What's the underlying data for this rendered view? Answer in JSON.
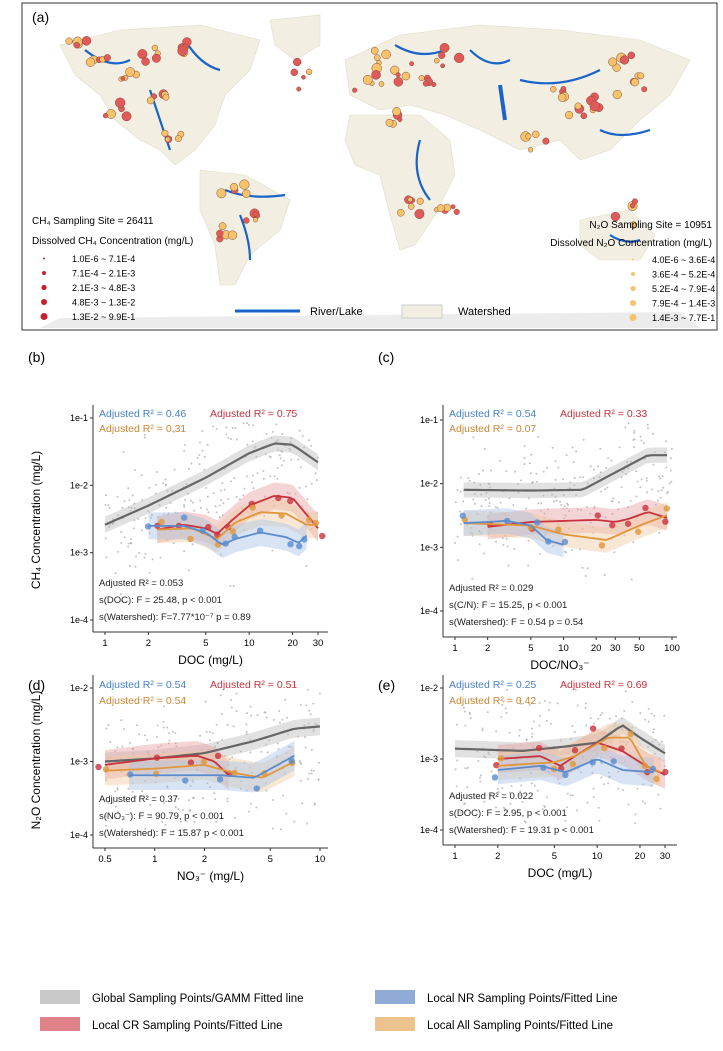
{
  "map": {
    "panel_label": "(a)",
    "ch4_site_count": "CH₄ Sampling Site = 26411",
    "ch4_legend_title": "Dissolved CH₄ Concentration (mg/L)",
    "ch4_classes": [
      "1.0E-6 ~ 7.1E-4",
      "7.1E-4 ~ 2.1E-3",
      "2.1E-3 ~ 4.8E-3",
      "4.8E-3 ~ 1.3E-2",
      "1.3E-2 ~ 9.9E-1"
    ],
    "n2o_site_count": "N₂O Sampling Site = 10951",
    "n2o_legend_title": "Dissolved N₂O Concentration (mg/L)",
    "n2o_classes": [
      "4.0E-6 ~ 3.6E-4",
      "3.6E-4 ~ 5.2E-4",
      "5.2E-4 ~ 7.9E-4",
      "7.9E-4 ~ 1.4E-3",
      "1.4E-3 ~ 7.7E-1"
    ],
    "river_label": "River/Lake",
    "watershed_label": "Watershed",
    "colors": {
      "ch4": "#e05a5a",
      "n2o": "#f5c36b",
      "river": "#1a63c9",
      "land": "#f2efe2",
      "sea": "#f0f0f0"
    }
  },
  "legend": {
    "items": [
      {
        "label": "Global Sampling Points/GAMM Fitted line",
        "color": "#c8c8c8"
      },
      {
        "label": "Local NR Sampling Points/Fitted Line",
        "color": "#90acd6"
      },
      {
        "label": "Local CR Sampling Points/Fitted Line",
        "color": "#e0828a"
      },
      {
        "label": "Local All Sampling Points/Fitted Line",
        "color": "#ecc28e"
      }
    ]
  },
  "chart_data": [
    {
      "panel": "(b)",
      "type": "scatter+line",
      "xlabel": "DOC (mg/L)",
      "ylabel": "CH₄ Concentration (mg/L)",
      "xscale": "log",
      "yscale": "log",
      "xlim": [
        1,
        30
      ],
      "ylim": [
        0.0001,
        0.1
      ],
      "xticks": [
        1,
        2,
        5,
        10,
        20,
        30
      ],
      "xtick_labels": [
        "1",
        "2",
        "5",
        "10",
        "20",
        "30"
      ],
      "yticks": [
        0.0001,
        0.001,
        0.01,
        0.1
      ],
      "ytick_labels": [
        "1e-4",
        "1e-3",
        "1e-2",
        "1e-1"
      ],
      "r2_labels": {
        "nr": "Adjusted R² = 0.46",
        "cr": "Adjusted R² = 0.75",
        "all": "Adjusted R² = 0.31"
      },
      "stats": [
        "Adjusted R² = 0.053",
        "s(DOC): F = 25.48, p < 0.001",
        "s(Watershed): F=7.77*10⁻⁷ p = 0.89"
      ],
      "series": [
        {
          "name": "Global",
          "color": "#666666",
          "x": [
            1,
            2,
            5,
            10,
            15,
            20,
            30
          ],
          "y": [
            0.0026,
            0.005,
            0.013,
            0.03,
            0.042,
            0.04,
            0.022
          ]
        },
        {
          "name": "CR",
          "color": "#c8323c",
          "x": [
            2.3,
            3.5,
            5,
            6,
            7,
            10,
            15,
            20,
            30
          ],
          "y": [
            0.0022,
            0.0026,
            0.0023,
            0.0019,
            0.0026,
            0.005,
            0.007,
            0.0065,
            0.0023
          ]
        },
        {
          "name": "All",
          "color": "#e0963c",
          "x": [
            2.3,
            4,
            6,
            8,
            12,
            18,
            25,
            30
          ],
          "y": [
            0.0022,
            0.0023,
            0.0016,
            0.0028,
            0.004,
            0.0038,
            0.0026,
            0.0026
          ]
        },
        {
          "name": "NR",
          "color": "#5a8ccd",
          "x": [
            2,
            3.5,
            5,
            6.5,
            8,
            12,
            18,
            22,
            25
          ],
          "y": [
            0.0025,
            0.0025,
            0.002,
            0.0013,
            0.0016,
            0.002,
            0.0017,
            0.0014,
            0.0018
          ]
        }
      ]
    },
    {
      "panel": "(c)",
      "type": "scatter+line",
      "xlabel": "DOC/NO₃⁻",
      "ylabel": "",
      "xscale": "log",
      "yscale": "log",
      "xlim": [
        1,
        100
      ],
      "ylim": [
        0.0001,
        0.1
      ],
      "xticks": [
        1,
        2,
        5,
        10,
        20,
        30,
        50,
        100
      ],
      "xtick_labels": [
        "1",
        "2",
        "5",
        "10",
        "20",
        "30",
        "50",
        "100"
      ],
      "yticks": [
        0.0001,
        0.001,
        0.01,
        0.1
      ],
      "ytick_labels": [
        "1e-4",
        "1e-3",
        "1e-2",
        "1e-1"
      ],
      "r2_labels": {
        "nr": "Adjusted R² = 0.54",
        "cr": "Adjusted R² = 0.33",
        "all": "Adjusted R² = 0.07"
      },
      "stats": [
        "Adjusted R² = 0.029",
        "s(C/N): F = 15.25, p < 0.001",
        "s(Watershed): F = 0.54 p = 0.54"
      ],
      "series": [
        {
          "name": "Global",
          "color": "#666666",
          "x": [
            1.2,
            5,
            15,
            30,
            60,
            90
          ],
          "y": [
            0.008,
            0.0078,
            0.008,
            0.015,
            0.028,
            0.028
          ]
        },
        {
          "name": "CR",
          "color": "#c8323c",
          "x": [
            2,
            5,
            20,
            30,
            40,
            60,
            90
          ],
          "y": [
            0.0021,
            0.0025,
            0.0027,
            0.0025,
            0.0028,
            0.0036,
            0.0029
          ]
        },
        {
          "name": "All",
          "color": "#e0963c",
          "x": [
            1.2,
            5,
            10,
            25,
            50,
            90
          ],
          "y": [
            0.0024,
            0.0022,
            0.0016,
            0.0013,
            0.0022,
            0.0032
          ]
        },
        {
          "name": "NR",
          "color": "#5a8ccd",
          "x": [
            1.2,
            3,
            5,
            7,
            10
          ],
          "y": [
            0.0024,
            0.0026,
            0.0022,
            0.0013,
            0.0011
          ]
        }
      ]
    },
    {
      "panel": "(d)",
      "type": "scatter+line",
      "xlabel": "NO₃⁻ (mg/L)",
      "ylabel": "N₂O Concentration (mg/L)",
      "xscale": "log",
      "yscale": "log",
      "xlim": [
        0.5,
        10
      ],
      "ylim": [
        0.0001,
        0.01
      ],
      "xticks": [
        0.5,
        1,
        2,
        5,
        10
      ],
      "xtick_labels": [
        "0.5",
        "1",
        "2",
        "5",
        "10"
      ],
      "yticks": [
        0.0001,
        0.001,
        0.01
      ],
      "ytick_labels": [
        "1e-4",
        "1e-3",
        "1e-2"
      ],
      "r2_labels": {
        "nr": "Adjusted R² = 0.54",
        "cr": "Adjusted R² = 0.51",
        "all": "Adjusted R² = 0.54"
      },
      "stats": [
        "Adjusted R² = 0.37",
        "s(NO₃⁻): F = 90.79, p < 0.001",
        "s(Watershed): F = 15.87 p < 0.001"
      ],
      "series": [
        {
          "name": "Global",
          "color": "#666666",
          "x": [
            0.5,
            1,
            2,
            4,
            7,
            10
          ],
          "y": [
            0.001,
            0.0011,
            0.0013,
            0.0019,
            0.0028,
            0.003
          ]
        },
        {
          "name": "CR",
          "color": "#c8323c",
          "x": [
            0.5,
            1,
            1.8,
            2.3,
            2.8
          ],
          "y": [
            0.0009,
            0.0011,
            0.0012,
            0.001,
            0.00065
          ]
        },
        {
          "name": "All",
          "color": "#e0963c",
          "x": [
            0.5,
            1,
            2,
            3,
            4.5,
            7
          ],
          "y": [
            0.00075,
            0.0008,
            0.0009,
            0.0007,
            0.0006,
            0.001
          ]
        },
        {
          "name": "NR",
          "color": "#5a8ccd",
          "x": [
            0.7,
            1.5,
            2.5,
            4,
            7
          ],
          "y": [
            0.00065,
            0.00065,
            0.00065,
            0.0006,
            0.0012
          ]
        }
      ]
    },
    {
      "panel": "(e)",
      "type": "scatter+line",
      "xlabel": "DOC (mg/L)",
      "ylabel": "",
      "xscale": "log",
      "yscale": "log",
      "xlim": [
        1,
        30
      ],
      "ylim": [
        0.0001,
        0.01
      ],
      "xticks": [
        1,
        2,
        5,
        10,
        20,
        30
      ],
      "xtick_labels": [
        "1",
        "2",
        "5",
        "10",
        "20",
        "30"
      ],
      "yticks": [
        0.0001,
        0.001,
        0.01
      ],
      "ytick_labels": [
        "1e-4",
        "1e-3",
        "1e-2"
      ],
      "r2_labels": {
        "nr": "Adjusted R² = 0.25",
        "cr": "Adjusted R² = 0.69",
        "all": "Adjusted R² = 0.42"
      },
      "stats": [
        "Adjusted R² = 0.022",
        "s(DOC): F = 2.95, p < 0.001",
        "s(Watershed): F = 19.31 p < 0.001"
      ],
      "series": [
        {
          "name": "Global",
          "color": "#666666",
          "x": [
            1,
            3,
            6,
            10,
            15,
            20,
            30
          ],
          "y": [
            0.0014,
            0.0013,
            0.0015,
            0.0017,
            0.003,
            0.002,
            0.0012
          ]
        },
        {
          "name": "CR",
          "color": "#c8323c",
          "x": [
            2,
            4,
            5.5,
            7,
            10,
            15,
            22,
            30
          ],
          "y": [
            0.001,
            0.0011,
            0.0008,
            0.0011,
            0.0017,
            0.0013,
            0.0008,
            0.0006
          ]
        },
        {
          "name": "All",
          "color": "#e0963c",
          "x": [
            2,
            5,
            7,
            12,
            17,
            22,
            28
          ],
          "y": [
            0.0008,
            0.0009,
            0.0011,
            0.002,
            0.002,
            0.0008,
            0.00065
          ]
        },
        {
          "name": "NR",
          "color": "#5a8ccd",
          "x": [
            2,
            4,
            6,
            10,
            15,
            25
          ],
          "y": [
            0.0007,
            0.0008,
            0.00065,
            0.001,
            0.0007,
            0.00065
          ]
        }
      ]
    }
  ]
}
